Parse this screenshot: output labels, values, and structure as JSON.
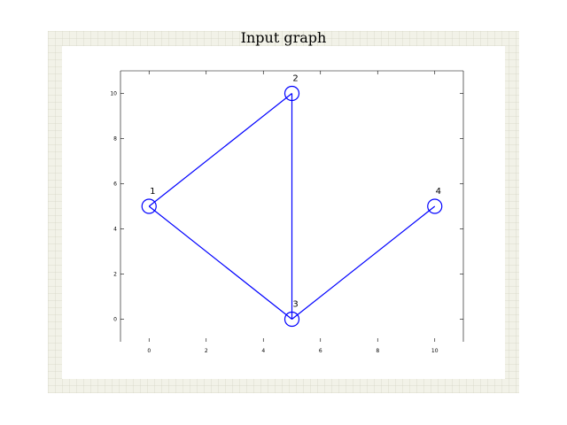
{
  "figure": {
    "title": "Input graph",
    "colors": {
      "edge": "#0000ff",
      "node": "#0000ff",
      "axis": "#000000",
      "frame": "#f2f2e8"
    }
  },
  "chart_data": {
    "type": "scatter",
    "xlim": [
      -1,
      11
    ],
    "ylim": [
      -1,
      11
    ],
    "x_ticks": [
      0,
      2,
      4,
      6,
      8,
      10
    ],
    "y_ticks": [
      0,
      2,
      4,
      6,
      8,
      10
    ],
    "grid": false,
    "nodes": [
      {
        "label": "1",
        "x": 0,
        "y": 5
      },
      {
        "label": "2",
        "x": 5,
        "y": 10
      },
      {
        "label": "3",
        "x": 5,
        "y": 0
      },
      {
        "label": "4",
        "x": 10,
        "y": 5
      }
    ],
    "edges": [
      {
        "from": "1",
        "to": "2"
      },
      {
        "from": "1",
        "to": "3"
      },
      {
        "from": "2",
        "to": "3"
      },
      {
        "from": "3",
        "to": "4"
      }
    ]
  }
}
